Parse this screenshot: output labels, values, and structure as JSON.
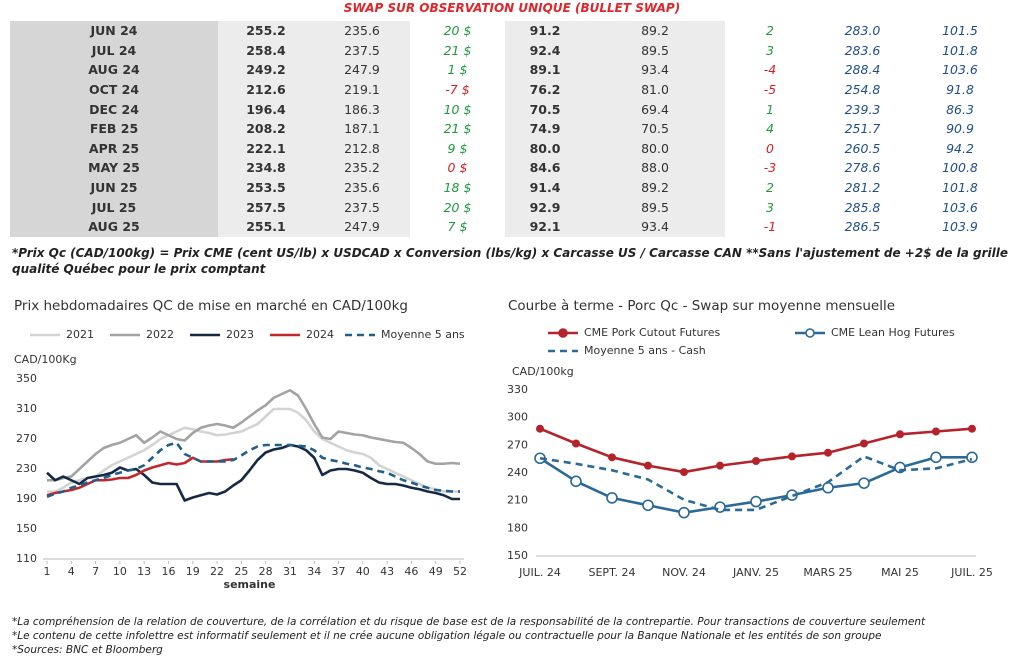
{
  "table": {
    "title": "SWAP SUR OBSERVATION UNIQUE (BULLET SWAP)",
    "rows": [
      [
        "JUN 24",
        "255.2",
        "235.6",
        "20 $",
        "91.2",
        "89.2",
        "2",
        "283.0",
        "101.5"
      ],
      [
        "JUL 24",
        "258.4",
        "237.5",
        "21 $",
        "92.4",
        "89.5",
        "3",
        "283.6",
        "101.8"
      ],
      [
        "AUG 24",
        "249.2",
        "247.9",
        "1 $",
        "89.1",
        "93.4",
        "-4",
        "288.4",
        "103.6"
      ],
      [
        "OCT 24",
        "212.6",
        "219.1",
        "-7 $",
        "76.2",
        "81.0",
        "-5",
        "254.8",
        "91.8"
      ],
      [
        "DEC 24",
        "196.4",
        "186.3",
        "10 $",
        "70.5",
        "69.4",
        "1",
        "239.3",
        "86.3"
      ],
      [
        "FEB 25",
        "208.2",
        "187.1",
        "21 $",
        "74.9",
        "70.5",
        "4",
        "251.7",
        "90.9"
      ],
      [
        "APR 25",
        "222.1",
        "212.8",
        "9 $",
        "80.0",
        "80.0",
        "0",
        "260.5",
        "94.2"
      ],
      [
        "MAY 25",
        "234.8",
        "235.2",
        "0 $",
        "84.6",
        "88.0",
        "-3",
        "278.6",
        "100.8"
      ],
      [
        "JUN 25",
        "253.5",
        "235.6",
        "18 $",
        "91.4",
        "89.2",
        "2",
        "281.2",
        "101.8"
      ],
      [
        "JUL 25",
        "257.5",
        "237.5",
        "20 $",
        "92.9",
        "89.5",
        "3",
        "285.8",
        "103.6"
      ],
      [
        "AUG 25",
        "255.1",
        "247.9",
        "7 $",
        "92.1",
        "93.4",
        "-1",
        "286.5",
        "103.9"
      ]
    ]
  },
  "note": "*Prix Qc (CAD/100kg) = Prix CME (cent US/lb) x USDCAD x Conversion (lbs/kg) x Carcasse US / Carcasse CAN **Sans l'ajustement de +2$ de la grille qualité Québec pour le prix comptant",
  "chart_data": [
    {
      "type": "line",
      "title": "Prix hebdomadaires QC de mise en marché en CAD/100kg",
      "y_label": "CAD/100Kg",
      "x_label": "semaine",
      "x": [
        1,
        2,
        3,
        4,
        5,
        6,
        7,
        8,
        9,
        10,
        11,
        12,
        13,
        14,
        15,
        16,
        17,
        18,
        19,
        20,
        21,
        22,
        23,
        24,
        25,
        26,
        27,
        28,
        29,
        30,
        31,
        32,
        33,
        34,
        35,
        36,
        37,
        38,
        39,
        40,
        41,
        42,
        43,
        44,
        45,
        46,
        47,
        48,
        49,
        50,
        51,
        52
      ],
      "xlim": [
        1,
        52
      ],
      "xticks": [
        1,
        4,
        7,
        10,
        13,
        16,
        19,
        22,
        25,
        28,
        31,
        34,
        37,
        40,
        43,
        46,
        49,
        52
      ],
      "ylim": [
        110,
        350
      ],
      "yticks": [
        110,
        150,
        190,
        230,
        270,
        310,
        350
      ],
      "series": [
        {
          "name": "2021",
          "color": "#d3d3d3",
          "values": [
            200,
            200,
            205,
            212,
            215,
            218,
            220,
            228,
            235,
            240,
            245,
            250,
            255,
            262,
            270,
            275,
            280,
            285,
            283,
            280,
            278,
            275,
            276,
            278,
            280,
            285,
            290,
            300,
            310,
            310,
            310,
            305,
            295,
            280,
            270,
            265,
            260,
            255,
            252,
            250,
            245,
            235,
            230,
            225,
            220,
            215,
            210,
            205,
            203,
            200,
            200,
            200
          ]
        },
        {
          "name": "2022",
          "color": "#a3a3a3",
          "values": [
            215,
            215,
            218,
            220,
            230,
            240,
            250,
            258,
            262,
            265,
            270,
            275,
            265,
            272,
            280,
            275,
            270,
            268,
            278,
            285,
            288,
            290,
            288,
            285,
            292,
            300,
            308,
            315,
            325,
            330,
            335,
            328,
            310,
            290,
            272,
            270,
            280,
            278,
            276,
            275,
            272,
            270,
            268,
            266,
            265,
            258,
            250,
            240,
            237,
            237,
            238,
            237
          ]
        },
        {
          "name": "2023",
          "color": "#172a45",
          "values": [
            225,
            215,
            220,
            215,
            210,
            218,
            220,
            222,
            225,
            232,
            228,
            230,
            222,
            212,
            210,
            210,
            210,
            188,
            192,
            195,
            198,
            196,
            200,
            208,
            215,
            228,
            242,
            252,
            256,
            258,
            262,
            260,
            255,
            245,
            222,
            228,
            230,
            230,
            228,
            225,
            218,
            212,
            210,
            210,
            208,
            205,
            203,
            200,
            198,
            195,
            190,
            190
          ]
        },
        {
          "name": "2024",
          "color": "#c0282d",
          "values": [
            195,
            198,
            200,
            202,
            205,
            210,
            215,
            215,
            216,
            218,
            218,
            222,
            228,
            232,
            235,
            238,
            236,
            238,
            245,
            240,
            240,
            240,
            242,
            243,
            null,
            null,
            null,
            null,
            null,
            null,
            null,
            null,
            null,
            null,
            null,
            null,
            null,
            null,
            null,
            null,
            null,
            null,
            null,
            null,
            null,
            null,
            null,
            null,
            null,
            null,
            null,
            null
          ]
        },
        {
          "name": "Moyenne 5 ans",
          "color": "#1f5f8b",
          "dashed": true,
          "values": [
            193,
            197,
            200,
            205,
            208,
            212,
            215,
            218,
            222,
            225,
            228,
            230,
            235,
            245,
            255,
            262,
            265,
            250,
            245,
            240,
            240,
            240,
            240,
            242,
            248,
            255,
            260,
            262,
            262,
            262,
            262,
            261,
            260,
            255,
            245,
            242,
            240,
            237,
            235,
            232,
            230,
            227,
            225,
            220,
            215,
            212,
            208,
            205,
            202,
            201,
            200,
            200
          ]
        }
      ]
    },
    {
      "type": "line",
      "title": "Courbe à terme - Porc Qc - Swap sur moyenne mensuelle",
      "y_label": "CAD/100kg",
      "categories": [
        "JUIL. 24",
        null,
        "SEPT. 24",
        null,
        "NOV. 24",
        null,
        "JANV. 25",
        null,
        "MARS 25",
        null,
        "MAI 25",
        null,
        "JUIL. 25"
      ],
      "ylim": [
        150,
        330
      ],
      "yticks": [
        150,
        180,
        210,
        240,
        270,
        300,
        330
      ],
      "series": [
        {
          "name": "CME Pork Cutout Futures",
          "color": "#b5232b",
          "marker": "filled",
          "values": [
            288,
            272,
            257,
            248,
            241,
            248,
            253,
            258,
            262,
            272,
            282,
            285,
            288
          ]
        },
        {
          "name": "CME Lean Hog Futures",
          "color": "#2b6a96",
          "marker": "hollow",
          "values": [
            256,
            231,
            213,
            205,
            197,
            203,
            209,
            216,
            224,
            229,
            246,
            257,
            257
          ]
        },
        {
          "name": "Moyenne 5 ans - Cash",
          "color": "#2b6a96",
          "dashed": true,
          "values": [
            256,
            250,
            243,
            233,
            211,
            200,
            200,
            215,
            230,
            258,
            243,
            245,
            255
          ]
        }
      ]
    }
  ],
  "footnotes": [
    "*La compréhension de la relation de couverture, de la corrélation et du risque de base est de la responsabilité de la contrepartie. Pour transactions de couverture seulement",
    "*Le contenu de cette infolettre est informatif seulement et il ne crée aucune obligation légale ou contractuelle pour la Banque Nationale et les entités de son groupe",
    "*Sources: BNC et Bloomberg"
  ]
}
